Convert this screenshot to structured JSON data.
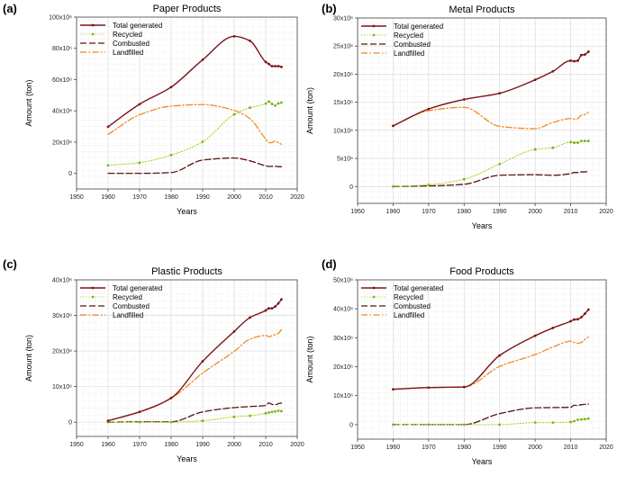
{
  "chart_data": [
    {
      "type": "line",
      "panel_label": "(a)",
      "title": "Paper Products",
      "xlabel": "Years",
      "ylabel": "Amount (ton)",
      "xlim": [
        1950,
        2020
      ],
      "ylim": [
        -10000000,
        100000000
      ],
      "xticks": [
        1950,
        1960,
        1970,
        1980,
        1990,
        2000,
        2010,
        2020
      ],
      "yticks": [
        {
          "v": 0,
          "label": "0"
        },
        {
          "v": 20000000,
          "label": "20x10⁶"
        },
        {
          "v": 40000000,
          "label": "40x10⁶"
        },
        {
          "v": 60000000,
          "label": "60x10⁶"
        },
        {
          "v": 80000000,
          "label": "80x10⁶"
        },
        {
          "v": 100000000,
          "label": "100x10⁶"
        }
      ],
      "grid": true,
      "legend_position": "top-left",
      "series": [
        {
          "name": "Total generated",
          "x": [
            1960,
            1970,
            1980,
            1990,
            2000,
            2005,
            2010,
            2011,
            2012,
            2013,
            2014,
            2015
          ],
          "values": [
            29800000,
            44300000,
            55200000,
            72700000,
            87700000,
            84800000,
            71300000,
            70000000,
            68600000,
            68600000,
            68600000,
            68100000
          ]
        },
        {
          "name": "Recycled",
          "x": [
            1960,
            1970,
            1980,
            1990,
            2000,
            2005,
            2010,
            2011,
            2012,
            2013,
            2014,
            2015
          ],
          "values": [
            5100000,
            6800000,
            11700000,
            20200000,
            37700000,
            42000000,
            44600000,
            45900000,
            44400000,
            43400000,
            44700000,
            45300000
          ]
        },
        {
          "name": "Combusted",
          "x": [
            1960,
            1970,
            1980,
            1990,
            2000,
            2005,
            2010,
            2011,
            2012,
            2013,
            2014,
            2015
          ],
          "values": [
            0,
            0,
            500000,
            8500000,
            9800000,
            8000000,
            4800000,
            4400000,
            4500000,
            4500000,
            4300000,
            4200000
          ]
        },
        {
          "name": "Landfilled",
          "x": [
            1960,
            1970,
            1980,
            1990,
            2000,
            2005,
            2010,
            2011,
            2012,
            2013,
            2014,
            2015
          ],
          "values": [
            24900000,
            37500000,
            43000000,
            44000000,
            40300000,
            35000000,
            21900000,
            19600000,
            19700000,
            20700000,
            19600000,
            18600000
          ]
        }
      ]
    },
    {
      "type": "line",
      "panel_label": "(b)",
      "title": "Metal Products",
      "xlabel": "Years",
      "ylabel": "Amount (ton)",
      "xlim": [
        1950,
        2020
      ],
      "ylim": [
        -3000000,
        30000000
      ],
      "xticks": [
        1950,
        1960,
        1970,
        1980,
        1990,
        2000,
        2010,
        2020
      ],
      "yticks": [
        {
          "v": 0,
          "label": "0"
        },
        {
          "v": 5000000,
          "label": "5x10⁶"
        },
        {
          "v": 10000000,
          "label": "10x10⁶"
        },
        {
          "v": 15000000,
          "label": "15x10⁶"
        },
        {
          "v": 20000000,
          "label": "20x10⁶"
        },
        {
          "v": 25000000,
          "label": "25x10⁶"
        },
        {
          "v": 30000000,
          "label": "30x10⁶"
        }
      ],
      "grid": true,
      "legend_position": "top-left",
      "series": [
        {
          "name": "Total generated",
          "x": [
            1960,
            1970,
            1980,
            1990,
            2000,
            2005,
            2010,
            2011,
            2012,
            2013,
            2014,
            2015
          ],
          "values": [
            10800000,
            13800000,
            15500000,
            16600000,
            19000000,
            20500000,
            22400000,
            22300000,
            22400000,
            23400000,
            23500000,
            24000000
          ]
        },
        {
          "name": "Recycled",
          "x": [
            1960,
            1970,
            1980,
            1990,
            2000,
            2005,
            2010,
            2011,
            2012,
            2013,
            2014,
            2015
          ],
          "values": [
            0,
            300000,
            1300000,
            4000000,
            6600000,
            6900000,
            7900000,
            7800000,
            7800000,
            8100000,
            8100000,
            8100000
          ]
        },
        {
          "name": "Combusted",
          "x": [
            1960,
            1970,
            1980,
            1990,
            2000,
            2005,
            2010,
            2011,
            2012,
            2013,
            2014,
            2015
          ],
          "values": [
            0,
            100000,
            400000,
            2000000,
            2100000,
            2000000,
            2300000,
            2500000,
            2500000,
            2600000,
            2600000,
            2700000
          ]
        },
        {
          "name": "Landfilled",
          "x": [
            1960,
            1970,
            1980,
            1990,
            2000,
            2005,
            2010,
            2011,
            2012,
            2013,
            2014,
            2015
          ],
          "values": [
            10800000,
            13500000,
            14100000,
            10700000,
            10300000,
            11400000,
            12100000,
            12000000,
            12100000,
            12700000,
            12800000,
            13200000
          ]
        }
      ]
    },
    {
      "type": "line",
      "panel_label": "(c)",
      "title": "Plastic Products",
      "xlabel": "Years",
      "ylabel": "Amount (ton)",
      "xlim": [
        1950,
        2020
      ],
      "ylim": [
        -4000000,
        40000000
      ],
      "xticks": [
        1950,
        1960,
        1970,
        1980,
        1990,
        2000,
        2010,
        2020
      ],
      "yticks": [
        {
          "v": 0,
          "label": "0"
        },
        {
          "v": 10000000,
          "label": "10x10⁶"
        },
        {
          "v": 20000000,
          "label": "20x10⁶"
        },
        {
          "v": 30000000,
          "label": "30x10⁶"
        },
        {
          "v": 40000000,
          "label": "40x10⁶"
        }
      ],
      "grid": true,
      "legend_position": "top-left",
      "series": [
        {
          "name": "Total generated",
          "x": [
            1960,
            1970,
            1980,
            1990,
            2000,
            2005,
            2010,
            2011,
            2012,
            2013,
            2014,
            2015
          ],
          "values": [
            400000,
            2900000,
            6800000,
            17100000,
            25500000,
            29400000,
            31400000,
            32000000,
            32000000,
            32500000,
            33400000,
            34500000
          ]
        },
        {
          "name": "Recycled",
          "x": [
            1960,
            1970,
            1980,
            1990,
            2000,
            2005,
            2010,
            2011,
            2012,
            2013,
            2014,
            2015
          ],
          "values": [
            0,
            0,
            0,
            400000,
            1500000,
            1800000,
            2500000,
            2700000,
            2900000,
            3000000,
            3200000,
            3100000
          ]
        },
        {
          "name": "Combusted",
          "x": [
            1960,
            1970,
            1980,
            1990,
            2000,
            2005,
            2010,
            2011,
            2012,
            2013,
            2014,
            2015
          ],
          "values": [
            0,
            100000,
            100000,
            2900000,
            4100000,
            4400000,
            4700000,
            5400000,
            5000000,
            4900000,
            5200000,
            5400000
          ]
        },
        {
          "name": "Landfilled",
          "x": [
            1960,
            1970,
            1980,
            1990,
            2000,
            2005,
            2010,
            2011,
            2012,
            2013,
            2014,
            2015
          ],
          "values": [
            400000,
            2900000,
            6700000,
            13800000,
            19900000,
            23300000,
            24400000,
            24000000,
            24300000,
            24600000,
            25000000,
            26000000
          ]
        }
      ]
    },
    {
      "type": "line",
      "panel_label": "(d)",
      "title": "Food Products",
      "xlabel": "Years",
      "ylabel": "Amount (ton)",
      "xlim": [
        1950,
        2020
      ],
      "ylim": [
        -5000000,
        50000000
      ],
      "xticks": [
        1950,
        1960,
        1970,
        1980,
        1990,
        2000,
        2010,
        2020
      ],
      "yticks": [
        {
          "v": 0,
          "label": "0"
        },
        {
          "v": 10000000,
          "label": "10x10⁶"
        },
        {
          "v": 20000000,
          "label": "20x10⁶"
        },
        {
          "v": 30000000,
          "label": "30x10⁶"
        },
        {
          "v": 40000000,
          "label": "40x10⁶"
        },
        {
          "v": 50000000,
          "label": "50x10⁶"
        }
      ],
      "grid": true,
      "legend_position": "top-left",
      "series": [
        {
          "name": "Total generated",
          "x": [
            1960,
            1970,
            1980,
            1990,
            2000,
            2005,
            2010,
            2011,
            2012,
            2013,
            2014,
            2015
          ],
          "values": [
            12200000,
            12800000,
            13000000,
            23900000,
            30700000,
            33400000,
            35700000,
            36300000,
            36400000,
            37100000,
            38300000,
            39700000
          ]
        },
        {
          "name": "Recycled",
          "x": [
            1960,
            1970,
            1980,
            1990,
            2000,
            2005,
            2010,
            2011,
            2012,
            2013,
            2014,
            2015
          ],
          "values": [
            0,
            0,
            0,
            0,
            700000,
            700000,
            900000,
            1200000,
            1700000,
            1800000,
            1900000,
            2100000
          ]
        },
        {
          "name": "Combusted",
          "x": [
            1960,
            1970,
            1980,
            1990,
            2000,
            2005,
            2010,
            2011,
            2012,
            2013,
            2014,
            2015
          ],
          "values": [
            0,
            0,
            0,
            3800000,
            5800000,
            5900000,
            6000000,
            6700000,
            6600000,
            6900000,
            7000000,
            7100000
          ]
        },
        {
          "name": "Landfilled",
          "x": [
            1960,
            1970,
            1980,
            1990,
            2000,
            2005,
            2010,
            2011,
            2012,
            2013,
            2014,
            2015
          ],
          "values": [
            12200000,
            12800000,
            13000000,
            20100000,
            24200000,
            26800000,
            28800000,
            28400000,
            28100000,
            28400000,
            29400000,
            30300000
          ]
        }
      ]
    }
  ],
  "style": {
    "colors": {
      "Total generated": "#7b1518",
      "Recycled": "#a8d42c",
      "Combusted": "#5a1410",
      "Landfilled": "#f08a24",
      "grid": "#d5d5d5",
      "axis": "#444444"
    }
  }
}
